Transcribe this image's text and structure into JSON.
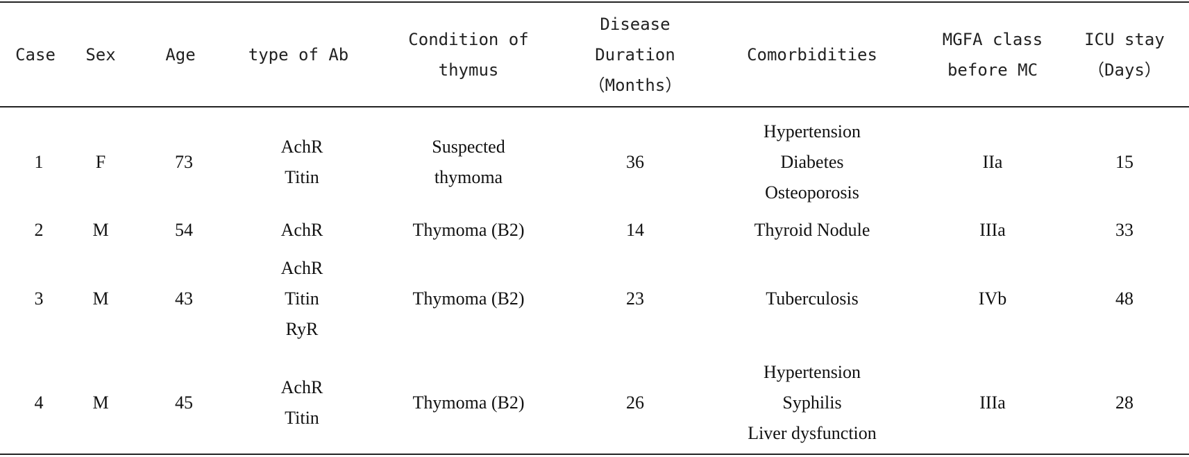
{
  "table": {
    "headers": [
      [
        "Case"
      ],
      [
        "Sex"
      ],
      [
        "Age"
      ],
      [
        "type of Ab"
      ],
      [
        "Condition of",
        "thymus"
      ],
      [
        "Disease",
        "Duration",
        "（Months）"
      ],
      [
        "Comorbidities"
      ],
      [
        "MGFA class",
        "before MC"
      ],
      [
        "ICU stay",
        "（Days）"
      ]
    ],
    "rows": [
      {
        "case": "1",
        "sex": "F",
        "age": "73",
        "ab": [
          "AchR",
          "Titin"
        ],
        "thymus": [
          "Suspected",
          "thymoma"
        ],
        "duration": "36",
        "comorbidities": [
          "Hypertension",
          "Diabetes",
          "Osteoporosis"
        ],
        "mgfa": "IIa",
        "icu": "15"
      },
      {
        "case": "2",
        "sex": "M",
        "age": "54",
        "ab": [
          "AchR"
        ],
        "thymus": [
          "Thymoma (B2)"
        ],
        "duration": "14",
        "comorbidities": [
          "Thyroid Nodule"
        ],
        "mgfa": "IIIa",
        "icu": "33"
      },
      {
        "case": "3",
        "sex": "M",
        "age": "43",
        "ab": [
          "AchR",
          "Titin",
          "RyR"
        ],
        "thymus": [
          "Thymoma (B2)"
        ],
        "duration": "23",
        "comorbidities": [
          "Tuberculosis"
        ],
        "mgfa": "IVb",
        "icu": "48"
      },
      {
        "case": "4",
        "sex": "M",
        "age": "45",
        "ab": [
          "AchR",
          "Titin"
        ],
        "thymus": [
          "Thymoma (B2)"
        ],
        "duration": "26",
        "comorbidities": [
          "Hypertension",
          "Syphilis",
          "Liver dysfunction"
        ],
        "mgfa": "IIIa",
        "icu": "28"
      }
    ]
  }
}
